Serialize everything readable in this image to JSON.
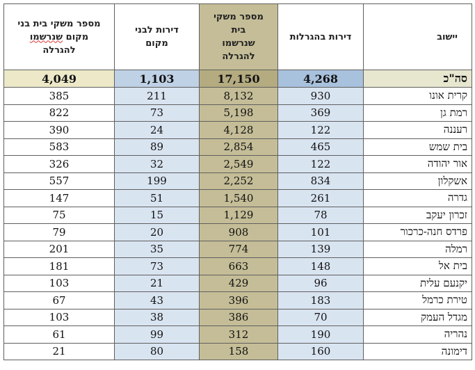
{
  "headers": {
    "locality": "יישוב",
    "lottery_apartments": "דירות בהגרלות",
    "families_registered": [
      "מספר משקי",
      "בית",
      "שנרשמו",
      "להגרלה"
    ],
    "local_apartments": [
      "דירות לבני",
      "מקום"
    ],
    "local_families_registered": {
      "line1": "מספר משקי בית בני",
      "line2_prefix": "מקום ",
      "line2_word": "שנרשמו",
      "line3": "להגרלה"
    }
  },
  "total": {
    "label": "סה\"כ",
    "lottery_apartments": "4,268",
    "families_registered": "17,150",
    "local_apartments": "1,103",
    "local_families_registered": "4,049"
  },
  "rows": [
    {
      "locality": "קרית אונו",
      "lottery_apartments": "930",
      "families_registered": "8,132",
      "local_apartments": "211",
      "local_families_registered": "385"
    },
    {
      "locality": "רמת גן",
      "lottery_apartments": "369",
      "families_registered": "5,198",
      "local_apartments": "73",
      "local_families_registered": "822"
    },
    {
      "locality": "רעננה",
      "lottery_apartments": "122",
      "families_registered": "4,128",
      "local_apartments": "24",
      "local_families_registered": "390"
    },
    {
      "locality": "בית שמש",
      "lottery_apartments": "465",
      "families_registered": "2,854",
      "local_apartments": "89",
      "local_families_registered": "583"
    },
    {
      "locality": "אור יהודה",
      "lottery_apartments": "122",
      "families_registered": "2,549",
      "local_apartments": "32",
      "local_families_registered": "326"
    },
    {
      "locality": "אשקלון",
      "lottery_apartments": "834",
      "families_registered": "2,252",
      "local_apartments": "199",
      "local_families_registered": "557"
    },
    {
      "locality": "גדרה",
      "lottery_apartments": "261",
      "families_registered": "1,540",
      "local_apartments": "51",
      "local_families_registered": "147"
    },
    {
      "locality": "זכרון יעקב",
      "lottery_apartments": "78",
      "families_registered": "1,129",
      "local_apartments": "15",
      "local_families_registered": "75"
    },
    {
      "locality": "פרדס חנה-כרכור",
      "lottery_apartments": "101",
      "families_registered": "908",
      "local_apartments": "20",
      "local_families_registered": "79"
    },
    {
      "locality": "רמלה",
      "lottery_apartments": "139",
      "families_registered": "774",
      "local_apartments": "35",
      "local_families_registered": "201"
    },
    {
      "locality": "בית אל",
      "lottery_apartments": "148",
      "families_registered": "663",
      "local_apartments": "73",
      "local_families_registered": "181"
    },
    {
      "locality": "יקנעם עלית",
      "lottery_apartments": "96",
      "families_registered": "429",
      "local_apartments": "21",
      "local_families_registered": "103"
    },
    {
      "locality": "טירת כרמל",
      "lottery_apartments": "183",
      "families_registered": "396",
      "local_apartments": "43",
      "local_families_registered": "67"
    },
    {
      "locality": "מגדל העמק",
      "lottery_apartments": "70",
      "families_registered": "386",
      "local_apartments": "38",
      "local_families_registered": "103"
    },
    {
      "locality": "נהריה",
      "lottery_apartments": "190",
      "families_registered": "312",
      "local_apartments": "99",
      "local_families_registered": "61"
    },
    {
      "locality": "דימונה",
      "lottery_apartments": "160",
      "families_registered": "158",
      "local_apartments": "80",
      "local_families_registered": "21"
    }
  ]
}
